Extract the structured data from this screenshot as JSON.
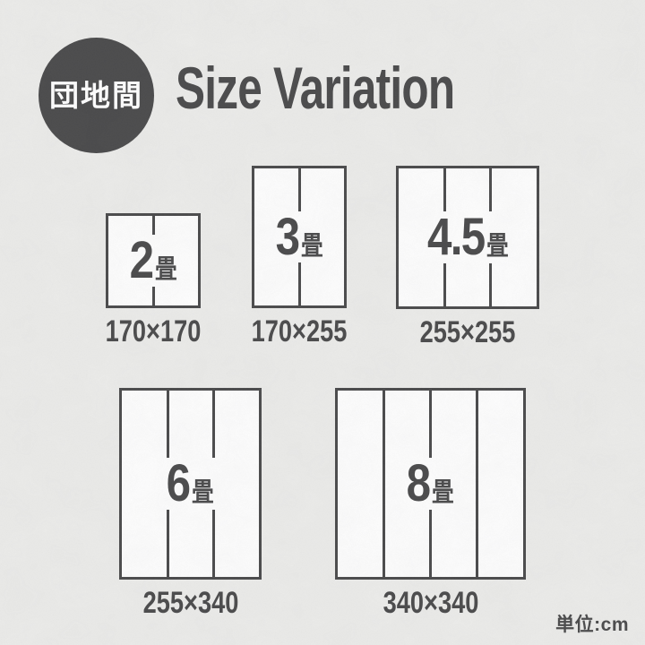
{
  "header": {
    "badge_label": "団地間",
    "title": "Size Variation"
  },
  "unit_note": "単位:cm",
  "colors": {
    "ink": "#4a4a4b",
    "paper": "#ececea",
    "mat_fill": "#fefefe",
    "badge_text": "#ffffff"
  },
  "sizes": [
    {
      "name": "2畳",
      "number": "2",
      "unit": "畳",
      "dimensions": "170×170",
      "panels": 2,
      "width_cm": 170,
      "height_cm": 170
    },
    {
      "name": "3畳",
      "number": "3",
      "unit": "畳",
      "dimensions": "170×255",
      "panels": 2,
      "width_cm": 170,
      "height_cm": 255
    },
    {
      "name": "4.5畳",
      "number": "4.5",
      "unit": "畳",
      "dimensions": "255×255",
      "panels": 3,
      "width_cm": 255,
      "height_cm": 255
    },
    {
      "name": "6畳",
      "number": "6",
      "unit": "畳",
      "dimensions": "255×340",
      "panels": 3,
      "width_cm": 255,
      "height_cm": 340
    },
    {
      "name": "8畳",
      "number": "8",
      "unit": "畳",
      "dimensions": "340×340",
      "panels": 4,
      "width_cm": 340,
      "height_cm": 340
    }
  ]
}
